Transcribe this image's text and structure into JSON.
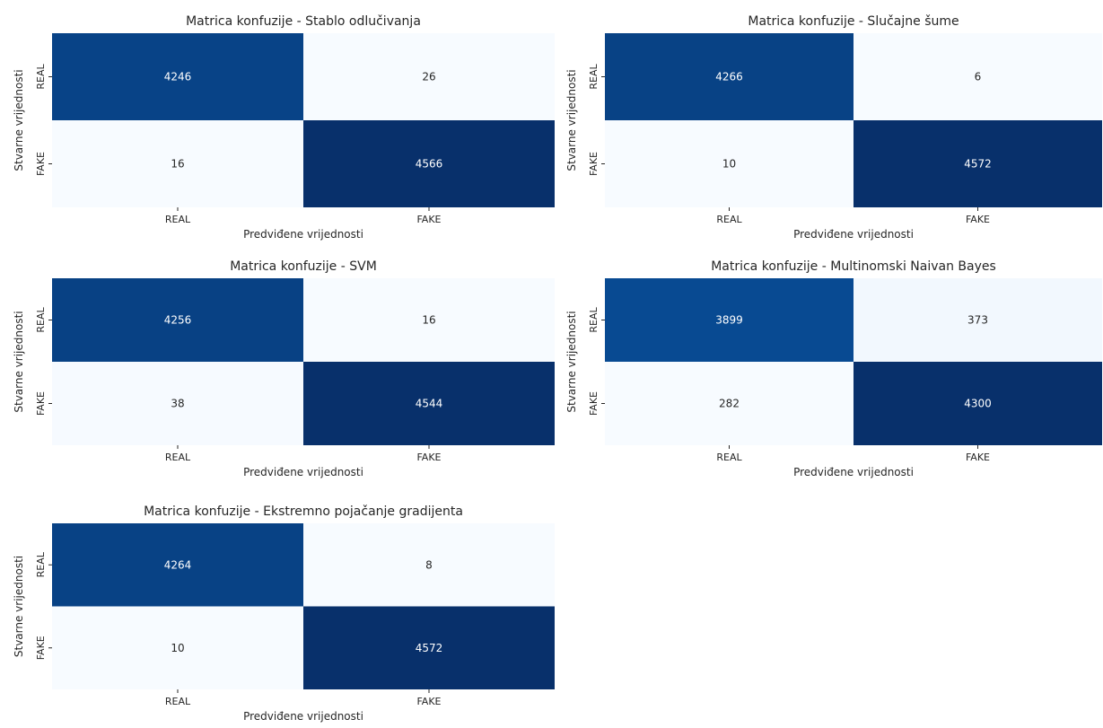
{
  "chart_data": [
    {
      "type": "heatmap",
      "title": "Matrica konfuzije - Stablo odlučivanja",
      "xlabel": "Predviđene vrijednosti",
      "ylabel": "Stvarne vrijednosti",
      "x_categories": [
        "REAL",
        "FAKE"
      ],
      "y_categories": [
        "REAL",
        "FAKE"
      ],
      "values": [
        [
          4246,
          26
        ],
        [
          16,
          4566
        ]
      ],
      "colormap": "Blues",
      "colorbar": false
    },
    {
      "type": "heatmap",
      "title": "Matrica konfuzije - Slučajne šume",
      "xlabel": "Predviđene vrijednosti",
      "ylabel": "Stvarne vrijednosti",
      "x_categories": [
        "REAL",
        "FAKE"
      ],
      "y_categories": [
        "REAL",
        "FAKE"
      ],
      "values": [
        [
          4266,
          6
        ],
        [
          10,
          4572
        ]
      ],
      "colormap": "Blues",
      "colorbar": false
    },
    {
      "type": "heatmap",
      "title": "Matrica konfuzije - SVM",
      "xlabel": "Predviđene vrijednosti",
      "ylabel": "Stvarne vrijednosti",
      "x_categories": [
        "REAL",
        "FAKE"
      ],
      "y_categories": [
        "REAL",
        "FAKE"
      ],
      "values": [
        [
          4256,
          16
        ],
        [
          38,
          4544
        ]
      ],
      "colormap": "Blues",
      "colorbar": false
    },
    {
      "type": "heatmap",
      "title": "Matrica konfuzije - Multinomski Naivan Bayes",
      "xlabel": "Predviđene vrijednosti",
      "ylabel": "Stvarne vrijednosti",
      "x_categories": [
        "REAL",
        "FAKE"
      ],
      "y_categories": [
        "REAL",
        "FAKE"
      ],
      "values": [
        [
          3899,
          373
        ],
        [
          282,
          4300
        ]
      ],
      "colormap": "Blues",
      "colorbar": false
    },
    {
      "type": "heatmap",
      "title": "Matrica konfuzije - Ekstremno pojačanje gradijenta",
      "xlabel": "Predviđene vrijednosti",
      "ylabel": "Stvarne vrijednosti",
      "x_categories": [
        "REAL",
        "FAKE"
      ],
      "y_categories": [
        "REAL",
        "FAKE"
      ],
      "values": [
        [
          4264,
          8
        ],
        [
          10,
          4572
        ]
      ],
      "colormap": "Blues",
      "colorbar": false
    }
  ]
}
